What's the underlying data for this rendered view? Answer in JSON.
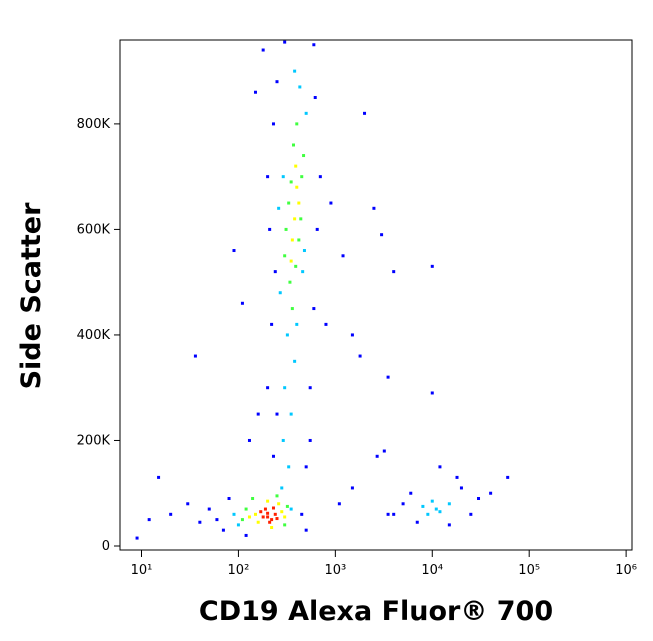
{
  "chart_data": {
    "type": "scatter",
    "xlabel": "CD19 Alexa Fluor® 700",
    "ylabel": "Side Scatter",
    "xscale": "log",
    "xlim": [
      6,
      1150000
    ],
    "ylim": [
      -7600,
      959000
    ],
    "xticks": [
      {
        "value": 10,
        "label": "10¹"
      },
      {
        "value": 100,
        "label": "10²"
      },
      {
        "value": 1000,
        "label": "10³"
      },
      {
        "value": 10000,
        "label": "10⁴"
      },
      {
        "value": 100000,
        "label": "10⁵"
      },
      {
        "value": 1000000,
        "label": "10⁶"
      }
    ],
    "yticks": [
      0,
      {
        "value": 200000,
        "label": "200K"
      },
      {
        "value": 400000,
        "label": "400K"
      },
      {
        "value": 600000,
        "label": "600K"
      },
      {
        "value": 800000,
        "label": "800K"
      }
    ],
    "series": [
      {
        "color": "#0000ff",
        "x": [
          60,
          50,
          70,
          40,
          80,
          120,
          450,
          500,
          30,
          20,
          12,
          9,
          15,
          36,
          230,
          200,
          250,
          220,
          240,
          210,
          200,
          230,
          250,
          550,
          600,
          650,
          700,
          620,
          550,
          500,
          900,
          1200,
          1500,
          2000,
          2500,
          3000,
          4000,
          3500,
          800,
          1800,
          150,
          180,
          300,
          600,
          5000,
          4000,
          6000,
          20000,
          25000,
          30000,
          7000,
          15000,
          18000,
          3500,
          10000,
          60000,
          12000,
          40000,
          2700,
          3200,
          1100,
          1500,
          10000,
          110,
          90,
          130,
          160
        ],
        "values": [
          50000,
          70000,
          30000,
          45000,
          90000,
          20000,
          60000,
          30000,
          80000,
          60000,
          50000,
          15000,
          130000,
          360000,
          170000,
          300000,
          250000,
          420000,
          520000,
          600000,
          700000,
          800000,
          880000,
          300000,
          450000,
          600000,
          700000,
          850000,
          200000,
          150000,
          650000,
          550000,
          400000,
          820000,
          640000,
          590000,
          520000,
          320000,
          420000,
          360000,
          860000,
          940000,
          955000,
          950000,
          80000,
          60000,
          100000,
          110000,
          60000,
          90000,
          45000,
          40000,
          130000,
          60000,
          290000,
          130000,
          150000,
          100000,
          170000,
          180000,
          80000,
          110000,
          530000,
          460000,
          560000,
          200000,
          250000
        ]
      },
      {
        "color": "#00c8ff",
        "x": [
          90,
          100,
          350,
          280,
          330,
          290,
          350,
          300,
          380,
          320,
          400,
          270,
          480,
          290,
          500,
          430,
          380,
          460,
          260,
          8000,
          12000,
          10000,
          9000,
          15000,
          11000
        ],
        "values": [
          60000,
          40000,
          70000,
          110000,
          150000,
          200000,
          250000,
          300000,
          350000,
          400000,
          420000,
          480000,
          560000,
          700000,
          820000,
          870000,
          900000,
          520000,
          640000,
          75000,
          65000,
          85000,
          60000,
          80000,
          70000
        ]
      },
      {
        "color": "#40ff40",
        "x": [
          120,
          320,
          140,
          300,
          110,
          250,
          340,
          420,
          310,
          450,
          370,
          330,
          400,
          440,
          360,
          300,
          470,
          350,
          390
        ],
        "values": [
          70000,
          75000,
          90000,
          40000,
          50000,
          95000,
          500000,
          580000,
          600000,
          700000,
          760000,
          650000,
          800000,
          620000,
          450000,
          550000,
          740000,
          690000,
          530000
        ]
      },
      {
        "color": "#ffff00",
        "x": [
          150,
          280,
          160,
          260,
          200,
          300,
          130,
          220,
          380,
          400,
          360,
          420,
          390,
          350
        ],
        "values": [
          60000,
          65000,
          45000,
          80000,
          85000,
          55000,
          55000,
          35000,
          620000,
          680000,
          580000,
          650000,
          720000,
          540000
        ]
      },
      {
        "color": "#ff2000",
        "x": [
          180,
          200,
          220,
          190,
          240,
          210,
          170,
          230,
          200,
          250
        ],
        "values": [
          55000,
          62000,
          50000,
          70000,
          60000,
          45000,
          65000,
          72000,
          55000,
          52000
        ]
      }
    ]
  }
}
